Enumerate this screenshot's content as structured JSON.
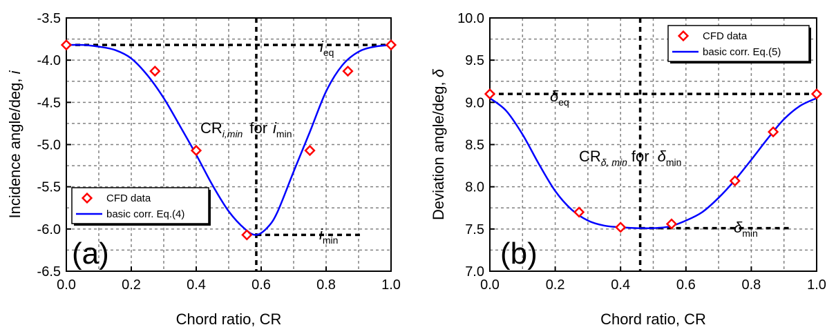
{
  "colors": {
    "curve": "#0000ff",
    "marker": "#ff0000",
    "grid": "#808080",
    "guide": "#000000"
  },
  "chart_data": [
    {
      "id": "a",
      "type": "scatter",
      "panel_label": "(a)",
      "xlabel": "Chord ratio, CR",
      "ylabel_main": "Incidence angle/deg, ",
      "ylabel_symbol": "i",
      "xlim": [
        0,
        1
      ],
      "ylim": [
        -6.5,
        -3.5
      ],
      "xticks": [
        0,
        0.2,
        0.4,
        0.6,
        0.8,
        1.0
      ],
      "xtick_labels": [
        "0.0",
        "0.2",
        "0.4",
        "0.6",
        "0.8",
        "1.0"
      ],
      "yticks": [
        -3.5,
        -4.0,
        -4.5,
        -5.0,
        -5.5,
        -6.0,
        -6.5
      ],
      "ytick_labels": [
        "-3.5",
        "-4.0",
        "-4.5",
        "-5.0",
        "-5.5",
        "-6.0",
        "-6.5"
      ],
      "legend": {
        "position": "bottom-left",
        "entries": [
          "CFD data",
          "basic corr. Eq.(4)"
        ]
      },
      "series": [
        {
          "name": "CFD data",
          "kind": "markers",
          "x": [
            0.0,
            0.273,
            0.4,
            0.556,
            0.75,
            0.867,
            1.0
          ],
          "y": [
            -3.82,
            -4.13,
            -5.07,
            -6.07,
            -5.07,
            -4.13,
            -3.82
          ]
        },
        {
          "name": "basic corr. Eq.(4)",
          "kind": "line",
          "x": [
            0.0,
            0.05,
            0.1,
            0.15,
            0.2,
            0.25,
            0.3,
            0.35,
            0.4,
            0.45,
            0.5,
            0.55,
            0.585,
            0.62,
            0.65,
            0.7,
            0.75,
            0.8,
            0.85,
            0.9,
            0.95,
            1.0
          ],
          "y": [
            -3.82,
            -3.82,
            -3.84,
            -3.88,
            -3.98,
            -4.18,
            -4.45,
            -4.78,
            -5.12,
            -5.48,
            -5.79,
            -6.0,
            -6.07,
            -5.98,
            -5.8,
            -5.32,
            -4.85,
            -4.37,
            -4.06,
            -3.9,
            -3.84,
            -3.82
          ]
        }
      ],
      "guides": {
        "x_min": 0.585,
        "y_eq": -3.82,
        "y_min": -6.07
      },
      "annotations": {
        "eq_main": "i",
        "eq_sub": "eq",
        "min_main": "i",
        "min_sub": "min",
        "cr_main": "CR",
        "cr_sub": "i,min",
        "cr_for": "for",
        "cr_sym": "i",
        "cr_sym_sub": "min"
      }
    },
    {
      "id": "b",
      "type": "scatter",
      "panel_label": "(b)",
      "xlabel": "Chord ratio, CR",
      "ylabel_main": "Deviation angle/deg, ",
      "ylabel_symbol": "δ",
      "xlim": [
        0,
        1
      ],
      "ylim": [
        7.0,
        10.0
      ],
      "xticks": [
        0,
        0.2,
        0.4,
        0.6,
        0.8,
        1.0
      ],
      "xtick_labels": [
        "0.0",
        "0.2",
        "0.4",
        "0.6",
        "0.8",
        "1.0"
      ],
      "yticks": [
        10.0,
        9.5,
        9.0,
        8.5,
        8.0,
        7.5,
        7.0
      ],
      "ytick_labels": [
        "10.0",
        "9.5",
        "9.0",
        "8.5",
        "8.0",
        "7.5",
        "7.0"
      ],
      "legend": {
        "position": "top-right",
        "entries": [
          "CFD data",
          "basic corr. Eq.(5)"
        ]
      },
      "series": [
        {
          "name": "CFD data",
          "kind": "markers",
          "x": [
            0.0,
            0.273,
            0.4,
            0.556,
            0.75,
            0.867,
            1.0
          ],
          "y": [
            9.1,
            7.7,
            7.52,
            7.56,
            8.07,
            8.65,
            9.1
          ]
        },
        {
          "name": "basic corr. Eq.(5)",
          "kind": "line",
          "x": [
            0.0,
            0.05,
            0.1,
            0.15,
            0.2,
            0.25,
            0.3,
            0.35,
            0.4,
            0.45,
            0.46,
            0.5,
            0.55,
            0.6,
            0.65,
            0.7,
            0.75,
            0.8,
            0.85,
            0.9,
            0.95,
            1.0
          ],
          "y": [
            9.05,
            8.9,
            8.62,
            8.27,
            7.95,
            7.73,
            7.6,
            7.54,
            7.52,
            7.51,
            7.51,
            7.51,
            7.53,
            7.6,
            7.7,
            7.87,
            8.08,
            8.32,
            8.57,
            8.8,
            8.96,
            9.05
          ]
        }
      ],
      "guides": {
        "x_min": 0.46,
        "y_eq": 9.1,
        "y_min": 7.51
      },
      "annotations": {
        "eq_main": "δ",
        "eq_sub": "eq",
        "min_main": "δ",
        "min_sub": "min",
        "cr_main": "CR",
        "cr_sub": "δ, min",
        "cr_for": "for",
        "cr_sym": "δ",
        "cr_sym_sub": "min"
      }
    }
  ]
}
